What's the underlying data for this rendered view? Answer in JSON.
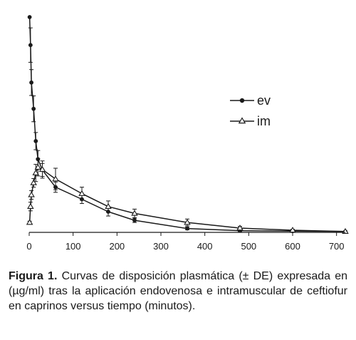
{
  "chart_data": {
    "type": "line",
    "xlim": [
      0,
      720
    ],
    "ylim": [
      0,
      50
    ],
    "x_ticks": [
      0,
      100,
      200,
      300,
      400,
      500,
      600,
      700
    ],
    "y_axis_visible": false,
    "grid": false,
    "legend_position": "top-right",
    "series": [
      {
        "name": "ev",
        "marker": "circle",
        "points": [
          {
            "x": 1,
            "y": 50.0,
            "err": 0.0
          },
          {
            "x": 3,
            "y": 43.5,
            "err": 4.0
          },
          {
            "x": 5,
            "y": 34.8,
            "err": 3.0
          },
          {
            "x": 10,
            "y": 28.7,
            "err": 3.0
          },
          {
            "x": 15,
            "y": 21.2,
            "err": 2.0
          },
          {
            "x": 20,
            "y": 17.0,
            "err": 2.0
          },
          {
            "x": 30,
            "y": 14.5,
            "err": 1.5
          },
          {
            "x": 60,
            "y": 10.5,
            "err": 1.2
          },
          {
            "x": 120,
            "y": 7.7,
            "err": 1.0
          },
          {
            "x": 180,
            "y": 4.8,
            "err": 1.0
          },
          {
            "x": 240,
            "y": 2.8,
            "err": 0.5
          },
          {
            "x": 360,
            "y": 0.9,
            "err": 0.3
          },
          {
            "x": 480,
            "y": 0.4,
            "err": 0.2
          },
          {
            "x": 600,
            "y": 0.3,
            "err": 0.1
          },
          {
            "x": 720,
            "y": 0.2,
            "err": 0.1
          }
        ]
      },
      {
        "name": "im",
        "marker": "triangle",
        "points": [
          {
            "x": 1,
            "y": 2.3,
            "err": 0.3
          },
          {
            "x": 3,
            "y": 6.0,
            "err": 1.0
          },
          {
            "x": 5,
            "y": 8.7,
            "err": 1.0
          },
          {
            "x": 10,
            "y": 11.5,
            "err": 1.0
          },
          {
            "x": 15,
            "y": 13.8,
            "err": 2.0
          },
          {
            "x": 20,
            "y": 15.1,
            "err": 2.0
          },
          {
            "x": 30,
            "y": 14.6,
            "err": 2.0
          },
          {
            "x": 60,
            "y": 12.4,
            "err": 2.5
          },
          {
            "x": 120,
            "y": 9.0,
            "err": 1.5
          },
          {
            "x": 180,
            "y": 6.0,
            "err": 1.3
          },
          {
            "x": 240,
            "y": 4.4,
            "err": 1.0
          },
          {
            "x": 360,
            "y": 2.3,
            "err": 0.8
          },
          {
            "x": 480,
            "y": 1.0,
            "err": 0.4
          },
          {
            "x": 600,
            "y": 0.5,
            "err": 0.2
          },
          {
            "x": 720,
            "y": 0.2,
            "err": 0.1
          }
        ]
      }
    ]
  },
  "caption": {
    "label": "Figura 1.",
    "text": "Curvas de disposición plasmática (± DE) expresada en (µg/ml) tras la aplicación endovenosa e intramuscular de ceftiofur en caprinos versus tiempo (minutos)."
  },
  "colors": {
    "ink": "#1a1a1a",
    "background": "#ffffff"
  }
}
